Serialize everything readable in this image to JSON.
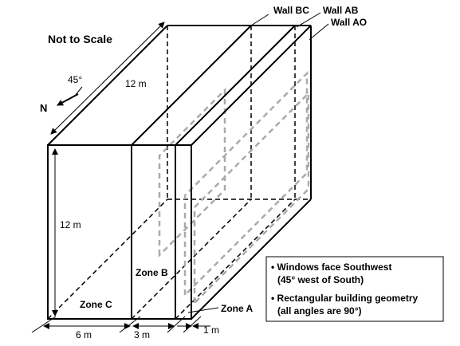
{
  "diagram": {
    "scale_note": "Not to Scale",
    "north_label": "N",
    "angle_label": "45°",
    "walls": {
      "bc": "Wall BC",
      "ab": "Wall AB",
      "ao": "Wall AO"
    },
    "zones": {
      "a": "Zone A",
      "b": "Zone B",
      "c": "Zone C"
    },
    "dimensions": {
      "depth": "12 m",
      "height": "12 m",
      "zone_c_width": "6 m",
      "zone_b_width": "3 m",
      "zone_a_width": "1 m"
    },
    "notes": [
      {
        "line1": "• Windows face Southwest",
        "line2": "(45° west of South)"
      },
      {
        "line1": "• Rectangular building geometry",
        "line2": "(all angles are 90°)"
      }
    ]
  }
}
